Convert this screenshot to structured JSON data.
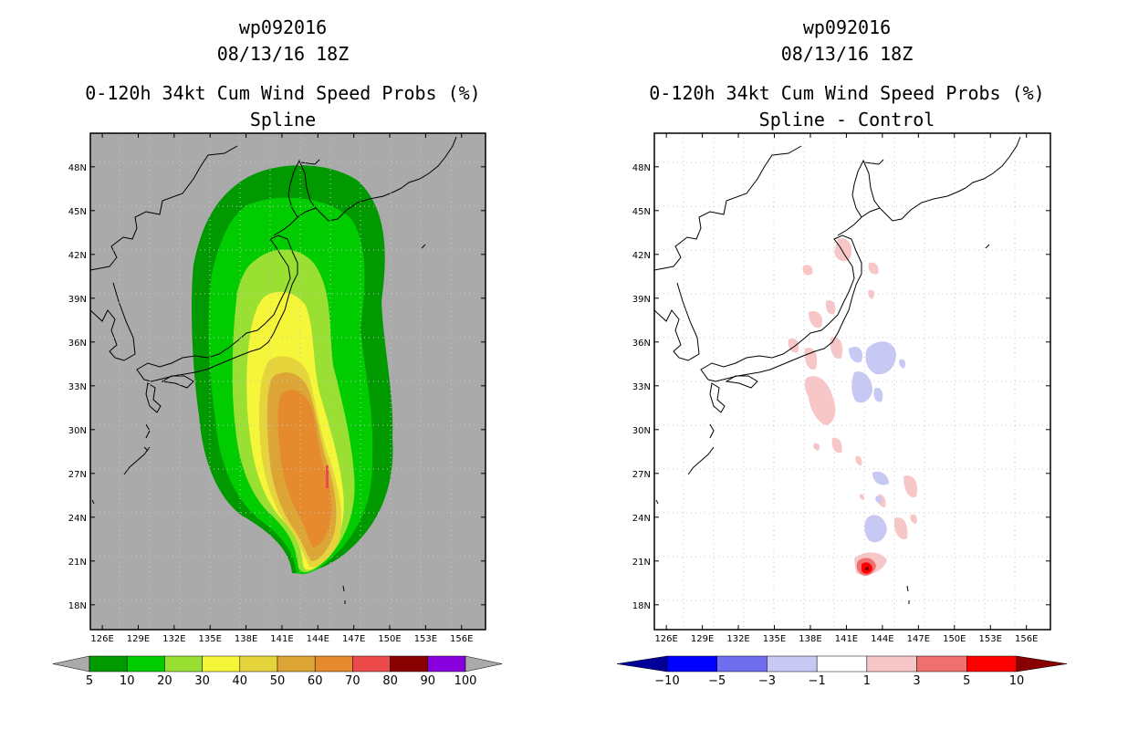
{
  "chart_data": [
    {
      "type": "filled-contour-map",
      "storm_id": "wp092016",
      "datetime": "08/13/16 18Z",
      "title": "0-120h 34kt Cum Wind Speed Probs (%)",
      "subtitle": "Spline",
      "x_ticks": [
        "126E",
        "129E",
        "132E",
        "135E",
        "138E",
        "141E",
        "144E",
        "147E",
        "150E",
        "153E",
        "156E"
      ],
      "y_ticks": [
        "48N",
        "45N",
        "42N",
        "39N",
        "36N",
        "33N",
        "30N",
        "27N",
        "24N",
        "21N",
        "18N"
      ],
      "xlim": [
        125,
        158
      ],
      "ylim": [
        16.3,
        50.3
      ],
      "levels": [
        "5",
        "10",
        "20",
        "30",
        "40",
        "50",
        "60",
        "70",
        "80",
        "90",
        "100"
      ],
      "colors": [
        "#009900",
        "#00cc00",
        "#99e033",
        "#f5f53a",
        "#e6d43c",
        "#dda535",
        "#e58a2d",
        "#ec4a4a",
        "#880000",
        "#8800dd"
      ],
      "under_color": "#aaaaaa",
      "over_color": "#aaaaaa",
      "background": "#aaaaaa"
    },
    {
      "type": "filled-contour-map",
      "storm_id": "wp092016",
      "datetime": "08/13/16 18Z",
      "title": "0-120h 34kt Cum Wind Speed Probs (%)",
      "subtitle": "Spline - Control",
      "x_ticks": [
        "126E",
        "129E",
        "132E",
        "135E",
        "138E",
        "141E",
        "144E",
        "147E",
        "150E",
        "153E",
        "156E"
      ],
      "y_ticks": [
        "48N",
        "45N",
        "42N",
        "39N",
        "36N",
        "33N",
        "30N",
        "27N",
        "24N",
        "21N",
        "18N"
      ],
      "xlim": [
        125,
        158
      ],
      "ylim": [
        16.3,
        50.3
      ],
      "levels": [
        "−10",
        "−5",
        "−3",
        "−1",
        "1",
        "3",
        "5",
        "10"
      ],
      "colors": [
        "#0000ff",
        "#6e6eef",
        "#c8c8f5",
        "#ffffff",
        "#f7c6c6",
        "#f07070",
        "#ff0000"
      ],
      "under_color": "#000099",
      "over_color": "#880000",
      "background": "#ffffff"
    }
  ]
}
